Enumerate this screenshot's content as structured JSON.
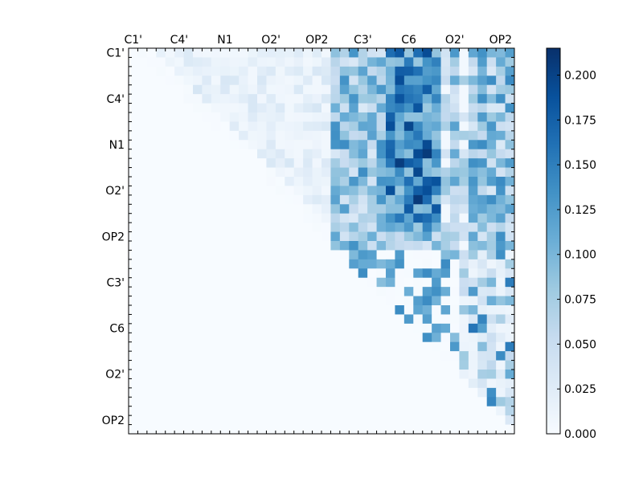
{
  "chart_data": {
    "type": "heatmap",
    "title": "",
    "xlabel": "",
    "ylabel": "",
    "x_axis_position": "top",
    "x_tick_labels": [
      "C1'",
      "C4'",
      "N1",
      "O2'",
      "OP2",
      "C3'",
      "C6",
      "O2'",
      "OP2"
    ],
    "y_tick_labels": [
      "C1'",
      "C4'",
      "N1",
      "O2'",
      "OP2",
      "C3'",
      "C6",
      "O2'",
      "OP2"
    ],
    "n_rows": 42,
    "n_cols": 42,
    "shape": "upper-triangular",
    "colormap": "Blues",
    "colorbar": {
      "min": 0.0,
      "max": 0.215,
      "ticks": [
        0.0,
        0.025,
        0.05,
        0.075,
        0.1,
        0.125,
        0.15,
        0.175,
        0.2
      ],
      "tick_labels": [
        "0.000",
        "0.025",
        "0.050",
        "0.075",
        "0.100",
        "0.125",
        "0.150",
        "0.175",
        "0.200"
      ],
      "placement": "right"
    },
    "notes": "Per-cell values not printed; the upper block (rows 0-21, cols 22-41) is highest, reaching ~0.21, and the lower-right triangle holds scattered values."
  }
}
